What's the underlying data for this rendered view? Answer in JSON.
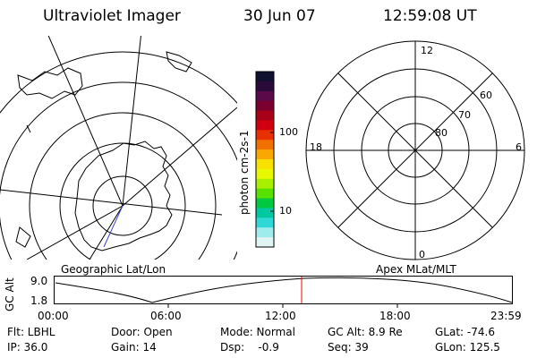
{
  "header": {
    "instrument": "Ultraviolet Imager",
    "date": "30 Jun 07",
    "time": "12:59:08 UT"
  },
  "colorbar": {
    "label": "photon cm-2s-1",
    "ticks": [
      "100",
      "10"
    ],
    "colors": [
      "#101030",
      "#2a0a3a",
      "#5a0a4a",
      "#7a0030",
      "#a80018",
      "#d00010",
      "#e83000",
      "#f07000",
      "#f8a800",
      "#f8e000",
      "#e8f800",
      "#a8f000",
      "#58e000",
      "#00c840",
      "#00c8a0",
      "#30d8d8",
      "#a0ecec",
      "#e0f4f4"
    ]
  },
  "left_panel": {
    "label": "Geographic Lat/Lon"
  },
  "right_panel": {
    "label": "Apex MLat/MLT",
    "mlt_labels": {
      "top": "12",
      "right": "6",
      "bottom": "0",
      "left": "18"
    },
    "lat_labels": [
      "60",
      "70",
      "80"
    ]
  },
  "altitude_strip": {
    "y_label": "GC Alt",
    "y_ticks": [
      "9.0",
      "1.8"
    ],
    "x_ticks": [
      "00:00",
      "06:00",
      "12:00",
      "18:00",
      "23:59"
    ],
    "current_marker_color": "#ff0000"
  },
  "info": {
    "row1": [
      "Flt: LBHL",
      "Door: Open",
      "Mode: Normal",
      "GC Alt: 8.9 Re",
      "GLat: -74.6"
    ],
    "row2": [
      "IP: 36.0",
      "Gain: 14",
      "Dsp:    -0.9",
      "Seq: 39",
      "GLon: 125.5"
    ]
  }
}
